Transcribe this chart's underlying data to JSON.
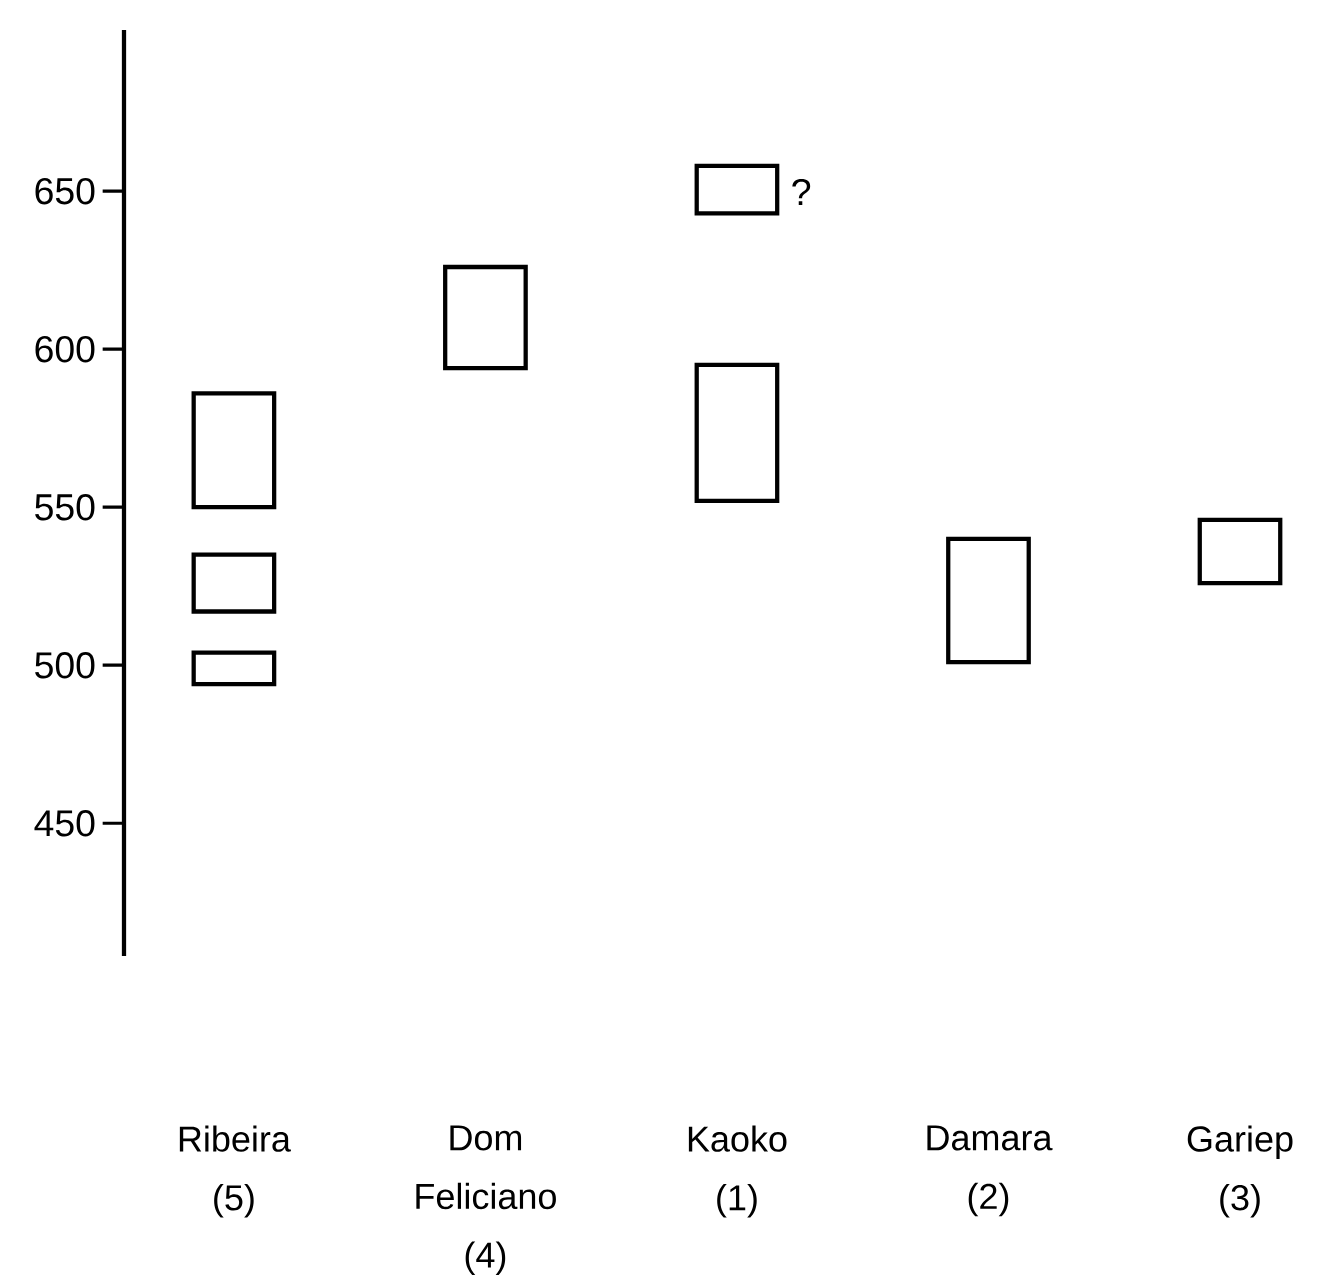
{
  "chart_data": {
    "type": "bar",
    "categories": [
      "Ribeira (5)",
      "Dom Feliciano (4)",
      "Kaoko (1)",
      "Damara (2)",
      "Gariep (3)"
    ],
    "series": [
      {
        "color": "#ffffff",
        "base": [
          550,
          594,
          552,
          501,
          526
        ],
        "values": [
          36,
          32,
          43,
          39,
          20
        ]
      },
      {
        "color": "#ffffff",
        "base": [
          517,
          null,
          643,
          null,
          null
        ],
        "values": [
          18,
          null,
          15,
          null,
          null
        ]
      },
      {
        "color": "#ffffff",
        "base": [
          494,
          null,
          null,
          null,
          null
        ],
        "values": [
          10,
          null,
          null,
          null,
          null
        ]
      }
    ],
    "ylim": [
      408,
      701
    ],
    "yticks": [
      450,
      500,
      550,
      600,
      650
    ],
    "grid": false,
    "annotations": [
      "?"
    ]
  }
}
